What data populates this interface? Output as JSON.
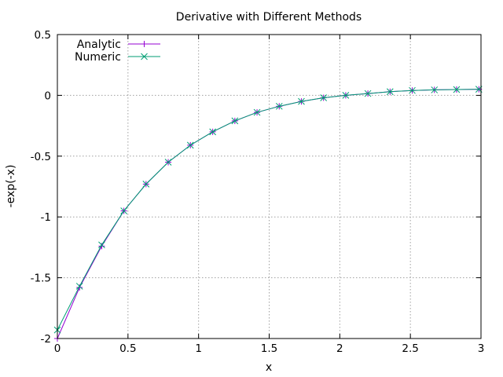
{
  "chart_data": {
    "type": "line",
    "title": "Derivative with Different Methods",
    "xlabel": "x",
    "ylabel": "-exp(-x)",
    "xlim": [
      0,
      3
    ],
    "ylim": [
      -2,
      0.5
    ],
    "xticks": [
      0,
      0.5,
      1,
      1.5,
      2,
      2.5,
      3
    ],
    "xtick_labels": [
      "0",
      "0.5",
      "1",
      "1.5",
      "2",
      "2.5",
      "3"
    ],
    "yticks": [
      -2,
      -1.5,
      -1,
      -0.5,
      0,
      0.5
    ],
    "ytick_labels": [
      "-2",
      "-1.5",
      "-1",
      "-0.5",
      "0",
      "0.5"
    ],
    "grid": true,
    "legend_position": "top-left",
    "series": [
      {
        "name": "Analytic",
        "color": "#9400d3",
        "marker": "plus",
        "x": [
          0,
          0.157,
          0.314,
          0.471,
          0.628,
          0.785,
          0.942,
          1.1,
          1.257,
          1.414,
          1.571,
          1.728,
          1.885,
          2.042,
          2.199,
          2.356,
          2.513,
          2.67,
          2.827,
          2.985
        ],
        "y": [
          -2.0,
          -1.58,
          -1.24,
          -0.95,
          -0.73,
          -0.55,
          -0.41,
          -0.3,
          -0.21,
          -0.14,
          -0.09,
          -0.05,
          -0.02,
          0.0,
          0.015,
          0.03,
          0.04,
          0.045,
          0.048,
          0.05
        ]
      },
      {
        "name": "Numeric",
        "color": "#009e73",
        "marker": "cross",
        "x": [
          0,
          0.157,
          0.314,
          0.471,
          0.628,
          0.785,
          0.942,
          1.1,
          1.257,
          1.414,
          1.571,
          1.728,
          1.885,
          2.042,
          2.199,
          2.356,
          2.513,
          2.67,
          2.827,
          2.985
        ],
        "y": [
          -1.93,
          -1.57,
          -1.23,
          -0.95,
          -0.73,
          -0.55,
          -0.41,
          -0.3,
          -0.21,
          -0.14,
          -0.09,
          -0.05,
          -0.02,
          0.0,
          0.015,
          0.03,
          0.04,
          0.045,
          0.048,
          0.05
        ]
      }
    ]
  }
}
